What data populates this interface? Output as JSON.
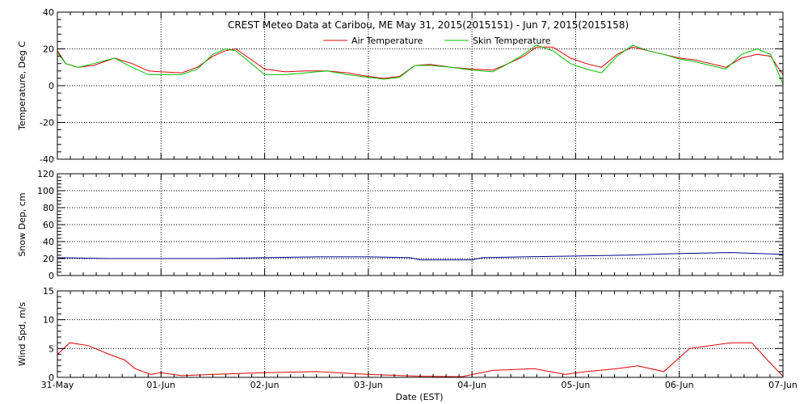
{
  "chart_data": {
    "type": "line",
    "title": "CREST Meteo Data at Caribou, ME   May 31, 2015(2015151) - Jun  7, 2015(2015158)",
    "xlabel": "Date (EST)",
    "x_tick_labels": [
      "31-May",
      "01-Jun",
      "02-Jun",
      "03-Jun",
      "04-Jun",
      "05-Jun",
      "06-Jun",
      "07-Jun"
    ],
    "xlim_days": [
      0,
      7
    ],
    "grid": true,
    "colors": {
      "air": "#e00000",
      "skin": "#00c000",
      "snow": "#00008b",
      "wind": "#e00000"
    },
    "panels": [
      {
        "id": "temperature",
        "ylabel": "Temperature, Deg C",
        "ylim": [
          -40,
          40
        ],
        "y_ticks": [
          -40,
          -20,
          0,
          20,
          40
        ],
        "legend": "top-center",
        "series": [
          {
            "name": "Air Temperature",
            "color": "#e00000",
            "x": [
              0,
              0.08,
              0.2,
              0.35,
              0.55,
              0.72,
              0.88,
              1.0,
              1.2,
              1.35,
              1.5,
              1.62,
              1.72,
              1.85,
              2.0,
              2.2,
              2.4,
              2.6,
              2.8,
              3.0,
              3.15,
              3.3,
              3.45,
              3.6,
              3.8,
              4.0,
              4.2,
              4.35,
              4.5,
              4.62,
              4.78,
              4.95,
              5.1,
              5.25,
              5.4,
              5.55,
              5.7,
              5.85,
              6.0,
              6.15,
              6.3,
              6.45,
              6.6,
              6.75,
              6.88,
              7.0
            ],
            "y": [
              19,
              12,
              10,
              11,
              15,
              12,
              8,
              7.5,
              7,
              10,
              16,
              19,
              20,
              15,
              9,
              7.5,
              8,
              8,
              7,
              5,
              4,
              5,
              11,
              11.5,
              10,
              9,
              8.5,
              12,
              16,
              21,
              21,
              15,
              12,
              10,
              17,
              21,
              19,
              17,
              15,
              14,
              12,
              10,
              15,
              17,
              16,
              6
            ]
          },
          {
            "name": "Skin Temperature",
            "color": "#00c000",
            "x": [
              0,
              0.08,
              0.2,
              0.35,
              0.55,
              0.72,
              0.88,
              1.0,
              1.2,
              1.35,
              1.5,
              1.62,
              1.72,
              1.85,
              2.0,
              2.2,
              2.4,
              2.6,
              2.8,
              3.0,
              3.15,
              3.3,
              3.45,
              3.6,
              3.8,
              4.0,
              4.2,
              4.35,
              4.5,
              4.62,
              4.78,
              4.95,
              5.1,
              5.25,
              5.4,
              5.55,
              5.7,
              5.85,
              6.0,
              6.15,
              6.3,
              6.45,
              6.6,
              6.75,
              6.88,
              7.0
            ],
            "y": [
              18,
              12,
              10,
              12,
              15,
              10,
              6,
              6,
              6,
              9,
              17,
              20,
              19,
              13,
              6,
              6,
              7,
              8,
              6,
              4.5,
              3.5,
              4.5,
              11,
              11,
              10,
              8.5,
              7.5,
              12,
              17,
              22,
              19,
              12,
              9,
              7,
              16,
              22,
              19,
              17,
              14.5,
              13,
              11,
              9,
              17,
              20,
              17,
              1
            ]
          }
        ]
      },
      {
        "id": "snow",
        "ylabel": "Snow Dep, cm",
        "ylim": [
          0,
          120
        ],
        "y_ticks": [
          0,
          20,
          40,
          60,
          80,
          100,
          120
        ],
        "series": [
          {
            "name": "",
            "color": "#00008b",
            "x": [
              0,
              0.5,
              1.0,
              1.5,
              2.0,
              2.5,
              3.0,
              3.4,
              3.5,
              4.0,
              4.1,
              4.5,
              5.0,
              5.5,
              6.0,
              6.5,
              7.0
            ],
            "y": [
              21,
              20,
              20,
              20,
              21,
              22,
              22,
              21,
              18.5,
              18.5,
              21,
              22,
              23,
              24,
              26,
              27,
              25
            ]
          }
        ]
      },
      {
        "id": "wind",
        "ylabel": "Wind Spd, m/s",
        "ylim": [
          0,
          15
        ],
        "y_ticks": [
          0,
          5,
          10,
          15
        ],
        "series": [
          {
            "name": "",
            "color": "#e00000",
            "x": [
              0,
              0.12,
              0.3,
              0.5,
              0.65,
              0.75,
              0.9,
              1.0,
              1.2,
              1.5,
              2.0,
              2.5,
              3.0,
              3.5,
              3.9,
              4.2,
              4.6,
              4.9,
              5.1,
              5.4,
              5.6,
              5.85,
              6.1,
              6.3,
              6.5,
              6.7,
              6.85,
              7.0
            ],
            "y": [
              4,
              6,
              5.5,
              4,
              3,
              1.5,
              0.5,
              0.8,
              0.3,
              0.5,
              0.8,
              1,
              0.5,
              0.2,
              0.1,
              1.2,
              1.5,
              0.5,
              1,
              1.5,
              2,
              1,
              5,
              5.5,
              6,
              6,
              3,
              0.2
            ]
          }
        ]
      }
    ]
  }
}
